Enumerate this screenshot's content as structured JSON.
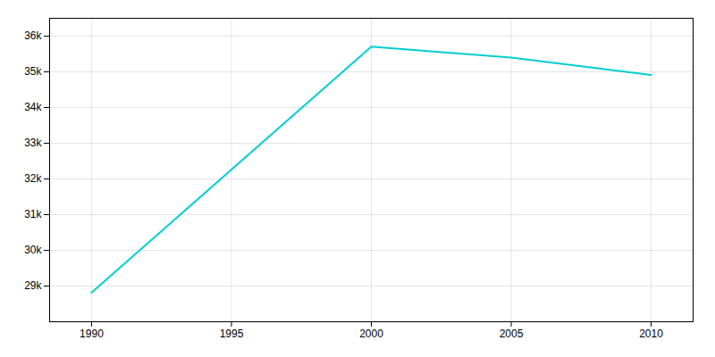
{
  "chart_data": {
    "type": "line",
    "x": [
      1990,
      2000,
      2005,
      2010
    ],
    "values": [
      28816,
      35706,
      35400,
      34910
    ],
    "color": "#00CED1",
    "xlim": [
      1988.5,
      2011.5
    ],
    "xticks": [
      1990,
      1995,
      2000,
      2005,
      2010
    ],
    "ylim": [
      28000,
      36500
    ],
    "yticks": [
      {
        "value": 29000,
        "label": "29k"
      },
      {
        "value": 30000,
        "label": "30k"
      },
      {
        "value": 31000,
        "label": "31k"
      },
      {
        "value": 32000,
        "label": "32k"
      },
      {
        "value": 33000,
        "label": "33k"
      },
      {
        "value": 34000,
        "label": "34k"
      },
      {
        "value": 35000,
        "label": "35k"
      },
      {
        "value": 36000,
        "label": "36k"
      }
    ],
    "grid": true
  }
}
